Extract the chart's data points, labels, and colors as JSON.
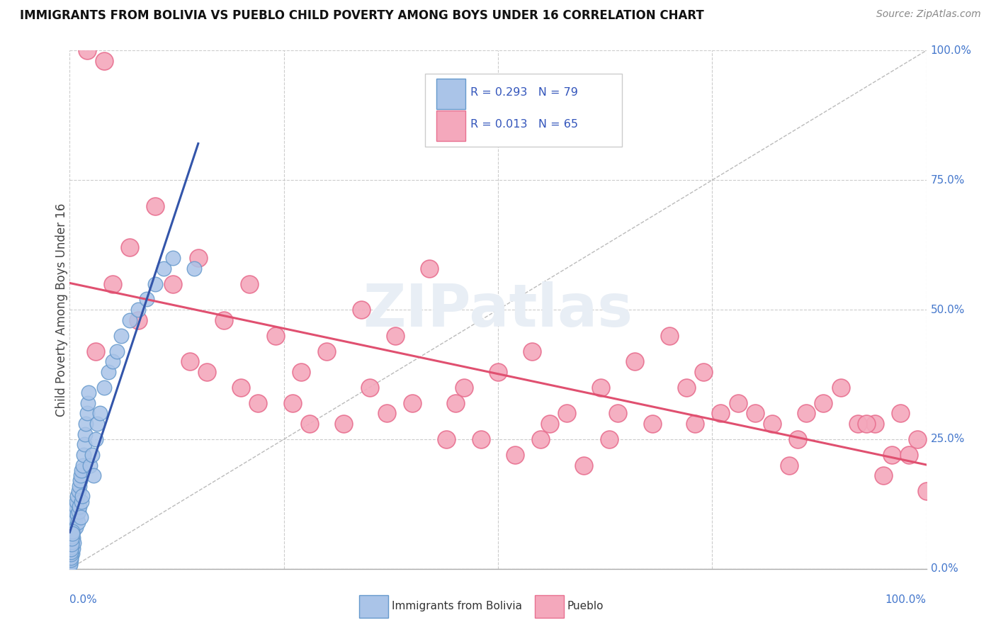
{
  "title": "IMMIGRANTS FROM BOLIVIA VS PUEBLO CHILD POVERTY AMONG BOYS UNDER 16 CORRELATION CHART",
  "source": "Source: ZipAtlas.com",
  "ylabel": "Child Poverty Among Boys Under 16",
  "legend_r1": "R = 0.293",
  "legend_n1": "N = 79",
  "legend_r2": "R = 0.013",
  "legend_n2": "N = 65",
  "bolivia_color": "#aac4e8",
  "pueblo_color": "#f4a8bc",
  "bolivia_edge": "#6699cc",
  "pueblo_edge": "#e87090",
  "trendline_bolivia_color": "#3355aa",
  "trendline_pueblo_color": "#e05070",
  "watermark": "ZIPatlas",
  "watermark_color": "#e8eef5",
  "bolivia_color_legend": "#aac4e8",
  "pueblo_color_legend": "#f4a8bc",
  "legend_text_color": "#3355bb",
  "axis_label_color": "#4477cc",
  "title_color": "#111111",
  "source_color": "#888888",
  "grid_color": "#cccccc",
  "bolivia_x": [
    0.05,
    0.08,
    0.1,
    0.12,
    0.15,
    0.18,
    0.2,
    0.22,
    0.25,
    0.28,
    0.3,
    0.32,
    0.35,
    0.38,
    0.4,
    0.42,
    0.45,
    0.48,
    0.5,
    0.55,
    0.6,
    0.65,
    0.7,
    0.75,
    0.8,
    0.85,
    0.9,
    0.95,
    1.0,
    1.05,
    1.1,
    1.15,
    1.2,
    1.25,
    1.3,
    1.35,
    1.4,
    1.45,
    1.5,
    1.6,
    1.7,
    1.8,
    1.9,
    2.0,
    2.1,
    2.2,
    2.4,
    2.6,
    2.8,
    3.0,
    3.2,
    3.5,
    4.0,
    4.5,
    5.0,
    5.5,
    6.0,
    7.0,
    8.0,
    9.0,
    10.0,
    11.0,
    12.0,
    0.05,
    0.06,
    0.07,
    0.09,
    0.11,
    0.13,
    0.14,
    0.16,
    0.17,
    0.19,
    0.21,
    0.23,
    0.24,
    0.26,
    0.27,
    14.5
  ],
  "bolivia_y": [
    2.0,
    1.5,
    3.0,
    2.5,
    4.0,
    3.5,
    5.0,
    4.5,
    6.0,
    3.0,
    7.0,
    5.5,
    8.0,
    4.0,
    9.0,
    6.0,
    7.5,
    5.0,
    8.5,
    10.0,
    9.5,
    11.0,
    12.0,
    8.0,
    13.0,
    10.5,
    14.0,
    9.0,
    15.0,
    11.0,
    16.0,
    12.0,
    17.0,
    10.0,
    18.0,
    13.0,
    19.0,
    14.0,
    20.0,
    22.0,
    24.0,
    26.0,
    28.0,
    30.0,
    32.0,
    34.0,
    20.0,
    22.0,
    18.0,
    25.0,
    28.0,
    30.0,
    35.0,
    38.0,
    40.0,
    42.0,
    45.0,
    48.0,
    50.0,
    52.0,
    55.0,
    58.0,
    60.0,
    1.0,
    1.2,
    0.8,
    1.8,
    2.2,
    2.8,
    3.2,
    4.2,
    3.8,
    5.2,
    4.8,
    6.2,
    5.8,
    7.2,
    6.8,
    58.0
  ],
  "pueblo_x": [
    2.0,
    4.0,
    7.0,
    10.0,
    12.0,
    15.0,
    18.0,
    21.0,
    24.0,
    27.0,
    30.0,
    34.0,
    38.0,
    42.0,
    46.0,
    50.0,
    54.0,
    58.0,
    62.0,
    66.0,
    70.0,
    74.0,
    78.0,
    82.0,
    86.0,
    90.0,
    94.0,
    97.0,
    8.0,
    14.0,
    20.0,
    26.0,
    32.0,
    40.0,
    48.0,
    56.0,
    64.0,
    72.0,
    80.0,
    88.0,
    92.0,
    96.0,
    99.0,
    5.0,
    16.0,
    35.0,
    45.0,
    55.0,
    68.0,
    76.0,
    85.0,
    93.0,
    98.0,
    3.0,
    22.0,
    37.0,
    52.0,
    63.0,
    73.0,
    84.0,
    95.0,
    100.0,
    28.0,
    44.0,
    60.0
  ],
  "pueblo_y": [
    100.0,
    98.0,
    62.0,
    70.0,
    55.0,
    60.0,
    48.0,
    55.0,
    45.0,
    38.0,
    42.0,
    50.0,
    45.0,
    58.0,
    35.0,
    38.0,
    42.0,
    30.0,
    35.0,
    40.0,
    45.0,
    38.0,
    32.0,
    28.0,
    30.0,
    35.0,
    28.0,
    30.0,
    48.0,
    40.0,
    35.0,
    32.0,
    28.0,
    32.0,
    25.0,
    28.0,
    30.0,
    35.0,
    30.0,
    32.0,
    28.0,
    22.0,
    25.0,
    55.0,
    38.0,
    35.0,
    32.0,
    25.0,
    28.0,
    30.0,
    25.0,
    28.0,
    22.0,
    42.0,
    32.0,
    30.0,
    22.0,
    25.0,
    28.0,
    20.0,
    18.0,
    15.0,
    28.0,
    25.0,
    20.0
  ]
}
